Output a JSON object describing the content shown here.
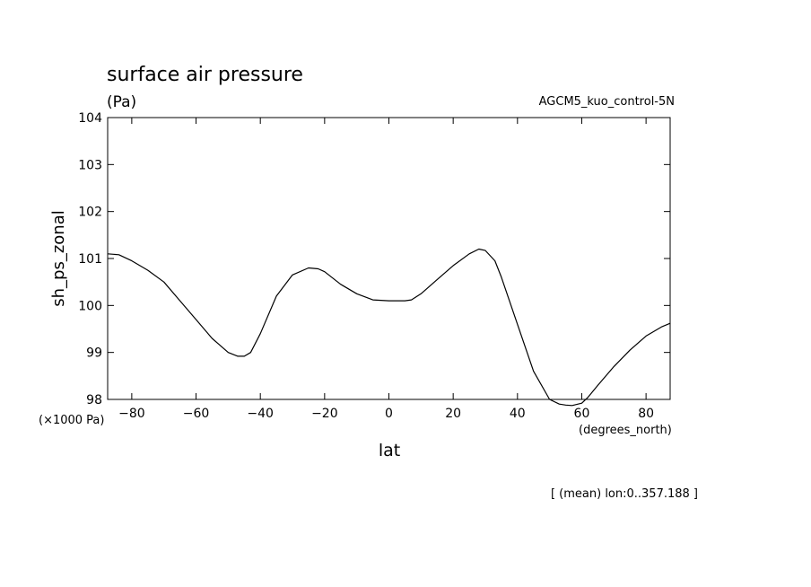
{
  "chart_data": {
    "type": "line",
    "title": "surface air pressure",
    "units": "(Pa)",
    "dataset": "AGCM5_kuo_control-5N",
    "xlabel": "lat",
    "xunits": "(degrees_north)",
    "ylabel": "sh_ps_zonal",
    "yscale_note": "(×1000 Pa)",
    "footer": "[ (mean) lon:0..357.188 ]",
    "xlim": [
      -87.5,
      87.5
    ],
    "ylim": [
      98,
      104
    ],
    "xticks": [
      -80,
      -60,
      -40,
      -20,
      0,
      20,
      40,
      60,
      80
    ],
    "xtick_labels": [
      "−80",
      "−60",
      "−40",
      "−20",
      "0",
      "20",
      "40",
      "60",
      "80"
    ],
    "yticks": [
      98,
      99,
      100,
      101,
      102,
      103,
      104
    ],
    "ytick_labels": [
      "98",
      "99",
      "100",
      "101",
      "102",
      "103",
      "104"
    ],
    "grid": false,
    "series": [
      {
        "color": "#000000",
        "x": [
          -87.5,
          -84,
          -80,
          -75,
          -70,
          -65,
          -60,
          -55,
          -50,
          -47,
          -45,
          -43,
          -40,
          -35,
          -30,
          -25,
          -22,
          -20,
          -15,
          -10,
          -5,
          0,
          5,
          7,
          10,
          15,
          20,
          25,
          28,
          30,
          33,
          35,
          40,
          45,
          50,
          53,
          55,
          57,
          60,
          62,
          65,
          70,
          75,
          80,
          85,
          87.5
        ],
        "values": [
          101.1,
          101.08,
          100.95,
          100.75,
          100.5,
          100.1,
          99.7,
          99.3,
          99.0,
          98.92,
          98.92,
          99.0,
          99.4,
          100.2,
          100.65,
          100.8,
          100.78,
          100.72,
          100.45,
          100.25,
          100.12,
          100.1,
          100.1,
          100.12,
          100.25,
          100.55,
          100.85,
          101.1,
          101.2,
          101.17,
          100.95,
          100.6,
          99.6,
          98.6,
          98.0,
          97.9,
          97.88,
          97.87,
          97.92,
          98.05,
          98.3,
          98.7,
          99.05,
          99.35,
          99.55,
          99.62
        ]
      }
    ]
  }
}
